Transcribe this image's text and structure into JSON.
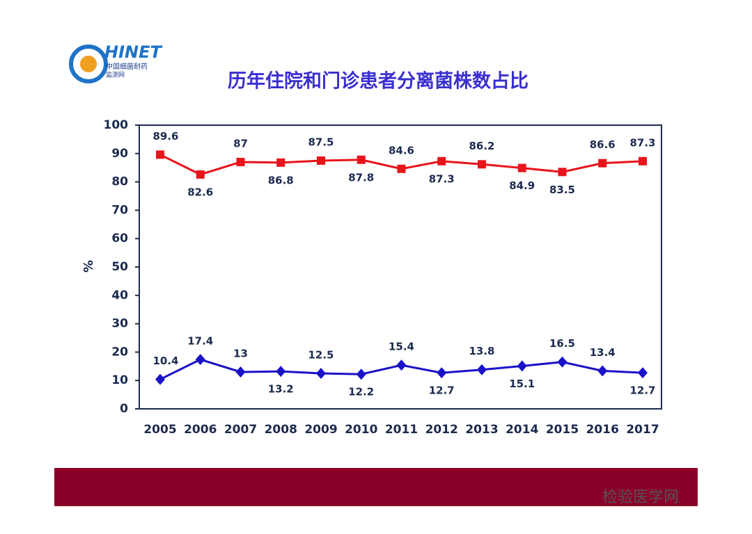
{
  "logo": {
    "name": "HINET",
    "line1": "中国细菌耐药",
    "line2": "监测网"
  },
  "watermark": "检验医学网",
  "chart_data": {
    "type": "line",
    "title": "历年住院和门诊患者分离菌株数占比",
    "y_label": "%",
    "categories": [
      "2005",
      "2006",
      "2007",
      "2008",
      "2009",
      "2010",
      "2011",
      "2012",
      "2013",
      "2014",
      "2015",
      "2016",
      "2017"
    ],
    "series": [
      {
        "color": "#e8141b",
        "marker": "square",
        "values": [
          89.6,
          82.6,
          87,
          86.8,
          87.5,
          87.8,
          84.6,
          87.3,
          86.2,
          84.9,
          83.5,
          86.6,
          87.3
        ]
      },
      {
        "color": "#1a12c8",
        "marker": "diamond",
        "values": [
          10.4,
          17.4,
          13,
          13.2,
          12.5,
          12.2,
          15.4,
          12.7,
          13.8,
          15.1,
          16.5,
          13.4,
          12.7
        ]
      }
    ],
    "ylim": [
      0,
      100
    ],
    "yticks": [
      0,
      10,
      20,
      30,
      40,
      50,
      60,
      70,
      80,
      90,
      100
    ],
    "grid": false
  }
}
